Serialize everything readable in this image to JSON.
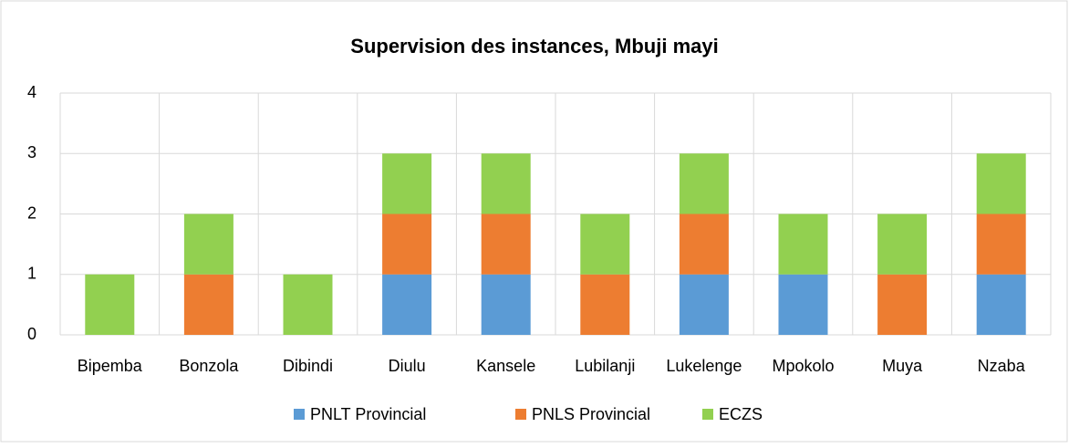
{
  "chart_data": {
    "type": "bar",
    "stacked": true,
    "title": "Supervision des instances, Mbuji mayi",
    "categories": [
      "Bipemba",
      "Bonzola",
      "Dibindi",
      "Diulu",
      "Kansele",
      "Lubilanji",
      "Lukelenge",
      "Mpokolo",
      "Muya",
      "Nzaba"
    ],
    "series": [
      {
        "name": "PNLT Provincial",
        "color": "#5b9bd5",
        "values": [
          0,
          0,
          0,
          1,
          1,
          0,
          1,
          1,
          0,
          1
        ]
      },
      {
        "name": "PNLS Provincial",
        "color": "#ed7d31",
        "values": [
          0,
          1,
          0,
          1,
          1,
          1,
          1,
          0,
          1,
          1
        ]
      },
      {
        "name": "ECZS",
        "color": "#92d050",
        "values": [
          1,
          1,
          1,
          1,
          1,
          1,
          1,
          1,
          1,
          1
        ]
      }
    ],
    "ylim": [
      0,
      4
    ],
    "yticks": [
      0,
      1,
      2,
      3,
      4
    ],
    "grid": true,
    "legend": "bottom"
  }
}
